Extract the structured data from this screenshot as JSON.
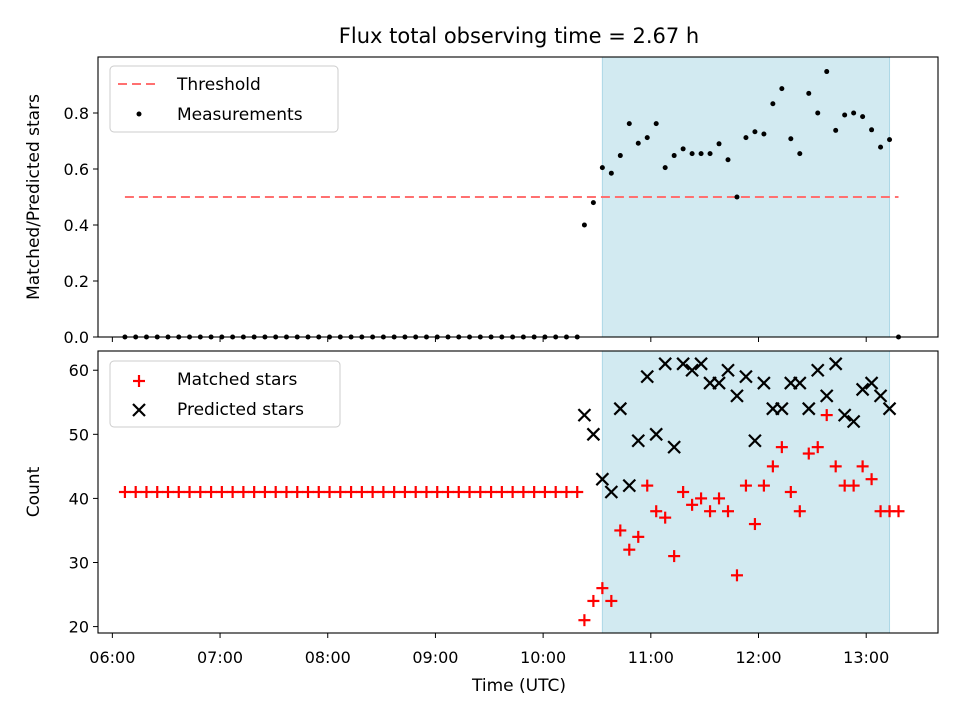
{
  "chart_data": [
    {
      "type": "scatter",
      "title": "Flux total observing time = 2.67 h",
      "ylabel": "Matched/Predicted stars",
      "xlabel": "",
      "ylim": [
        0,
        1.0
      ],
      "yticks": [
        "0.0",
        "0.2",
        "0.4",
        "0.6",
        "0.8"
      ],
      "ytick_values": [
        0.0,
        0.2,
        0.4,
        0.6,
        0.8
      ],
      "shaded_interval": [
        "10:33",
        "13:13"
      ],
      "shade_color": "#add8e6",
      "threshold": 0.5,
      "threshold_color": "#ff7070",
      "legend_position": "upper left",
      "legend": [
        "Threshold",
        "Measurements"
      ],
      "series": [
        {
          "name": "Measurements",
          "color": "#000000",
          "x": [
            "06:07",
            "06:13",
            "06:19",
            "06:25",
            "06:31",
            "06:37",
            "06:43",
            "06:49",
            "06:55",
            "07:01",
            "07:07",
            "07:13",
            "07:19",
            "07:25",
            "07:31",
            "07:37",
            "07:43",
            "07:49",
            "07:55",
            "08:01",
            "08:07",
            "08:13",
            "08:19",
            "08:25",
            "08:31",
            "08:37",
            "08:43",
            "08:49",
            "08:55",
            "09:01",
            "09:07",
            "09:13",
            "09:19",
            "09:25",
            "09:31",
            "09:37",
            "09:43",
            "09:49",
            "09:55",
            "10:01",
            "10:07",
            "10:13",
            "10:19",
            "10:23",
            "10:28",
            "10:33",
            "10:38",
            "10:43",
            "10:48",
            "10:53",
            "10:58",
            "11:03",
            "11:08",
            "11:13",
            "11:18",
            "11:23",
            "11:28",
            "11:33",
            "11:38",
            "11:43",
            "11:48",
            "11:53",
            "11:58",
            "12:03",
            "12:08",
            "12:13",
            "12:18",
            "12:23",
            "12:28",
            "12:33",
            "12:38",
            "12:43",
            "12:48",
            "12:53",
            "12:58",
            "13:03",
            "13:08",
            "13:13",
            "13:18"
          ],
          "y": [
            0,
            0,
            0,
            0,
            0,
            0,
            0,
            0,
            0,
            0,
            0,
            0,
            0,
            0,
            0,
            0,
            0,
            0,
            0,
            0,
            0,
            0,
            0,
            0,
            0,
            0,
            0,
            0,
            0,
            0,
            0,
            0,
            0,
            0,
            0,
            0,
            0,
            0,
            0,
            0,
            0,
            0,
            0,
            0.4,
            0.48,
            0.605,
            0.585,
            0.648,
            0.762,
            0.692,
            0.712,
            0.762,
            0.605,
            0.648,
            0.672,
            0.655,
            0.655,
            0.655,
            0.69,
            0.633,
            0.5,
            0.712,
            0.733,
            0.725,
            0.833,
            0.887,
            0.708,
            0.655,
            0.87,
            0.8,
            0.948,
            0.738,
            0.793,
            0.8,
            0.787,
            0.74,
            0.678,
            0.705,
            0
          ]
        }
      ]
    },
    {
      "type": "scatter",
      "title": "",
      "ylabel": "Count",
      "xlabel": "Time (UTC)",
      "ylim": [
        19,
        63
      ],
      "yticks": [
        "20",
        "30",
        "40",
        "50",
        "60"
      ],
      "ytick_values": [
        20,
        30,
        40,
        50,
        60
      ],
      "xticks": [
        "06:00",
        "07:00",
        "08:00",
        "09:00",
        "10:00",
        "11:00",
        "12:00",
        "13:00"
      ],
      "xtick_values": [
        "06:00",
        "07:00",
        "08:00",
        "09:00",
        "10:00",
        "11:00",
        "12:00",
        "13:00"
      ],
      "xlim": [
        "05:52",
        "13:40"
      ],
      "shaded_interval": [
        "10:33",
        "13:13"
      ],
      "shade_color": "#add8e6",
      "legend_position": "upper left",
      "legend": [
        "Matched stars",
        "Predicted stars"
      ],
      "series": [
        {
          "name": "Matched stars",
          "marker": "+",
          "color": "#ff0000",
          "x": [
            "06:07",
            "06:13",
            "06:19",
            "06:25",
            "06:31",
            "06:37",
            "06:43",
            "06:49",
            "06:55",
            "07:01",
            "07:07",
            "07:13",
            "07:19",
            "07:25",
            "07:31",
            "07:37",
            "07:43",
            "07:49",
            "07:55",
            "08:01",
            "08:07",
            "08:13",
            "08:19",
            "08:25",
            "08:31",
            "08:37",
            "08:43",
            "08:49",
            "08:55",
            "09:01",
            "09:07",
            "09:13",
            "09:19",
            "09:25",
            "09:31",
            "09:37",
            "09:43",
            "09:49",
            "09:55",
            "10:01",
            "10:07",
            "10:13",
            "10:19",
            "10:23",
            "10:28",
            "10:33",
            "10:38",
            "10:43",
            "10:48",
            "10:53",
            "10:58",
            "11:03",
            "11:08",
            "11:13",
            "11:18",
            "11:23",
            "11:28",
            "11:33",
            "11:38",
            "11:43",
            "11:48",
            "11:53",
            "11:58",
            "12:03",
            "12:08",
            "12:13",
            "12:18",
            "12:23",
            "12:28",
            "12:33",
            "12:38",
            "12:43",
            "12:48",
            "12:53",
            "12:58",
            "13:03",
            "13:08",
            "13:13",
            "13:18"
          ],
          "y": [
            41,
            41,
            41,
            41,
            41,
            41,
            41,
            41,
            41,
            41,
            41,
            41,
            41,
            41,
            41,
            41,
            41,
            41,
            41,
            41,
            41,
            41,
            41,
            41,
            41,
            41,
            41,
            41,
            41,
            41,
            41,
            41,
            41,
            41,
            41,
            41,
            41,
            41,
            41,
            41,
            41,
            41,
            41,
            21,
            24,
            26,
            24,
            35,
            32,
            34,
            42,
            38,
            37,
            31,
            41,
            39,
            40,
            38,
            40,
            38,
            28,
            42,
            36,
            42,
            45,
            48,
            41,
            38,
            47,
            48,
            53,
            45,
            42,
            42,
            45,
            43,
            38,
            38,
            38
          ]
        },
        {
          "name": "Predicted stars",
          "marker": "x",
          "color": "#000000",
          "x": [
            "10:23",
            "10:28",
            "10:33",
            "10:38",
            "10:43",
            "10:48",
            "10:53",
            "10:58",
            "11:03",
            "11:08",
            "11:13",
            "11:18",
            "11:23",
            "11:28",
            "11:33",
            "11:38",
            "11:43",
            "11:48",
            "11:53",
            "11:58",
            "12:03",
            "12:08",
            "12:13",
            "12:18",
            "12:23",
            "12:28",
            "12:33",
            "12:38",
            "12:43",
            "12:48",
            "12:53",
            "12:58",
            "13:03",
            "13:08",
            "13:13"
          ],
          "y": [
            53,
            50,
            43,
            41,
            54,
            42,
            49,
            59,
            50,
            61,
            48,
            61,
            60,
            61,
            58,
            58,
            60,
            56,
            59,
            49,
            58,
            54,
            54,
            58,
            58,
            54,
            60,
            56,
            61,
            53,
            52,
            57,
            58,
            56,
            54
          ]
        }
      ]
    }
  ]
}
